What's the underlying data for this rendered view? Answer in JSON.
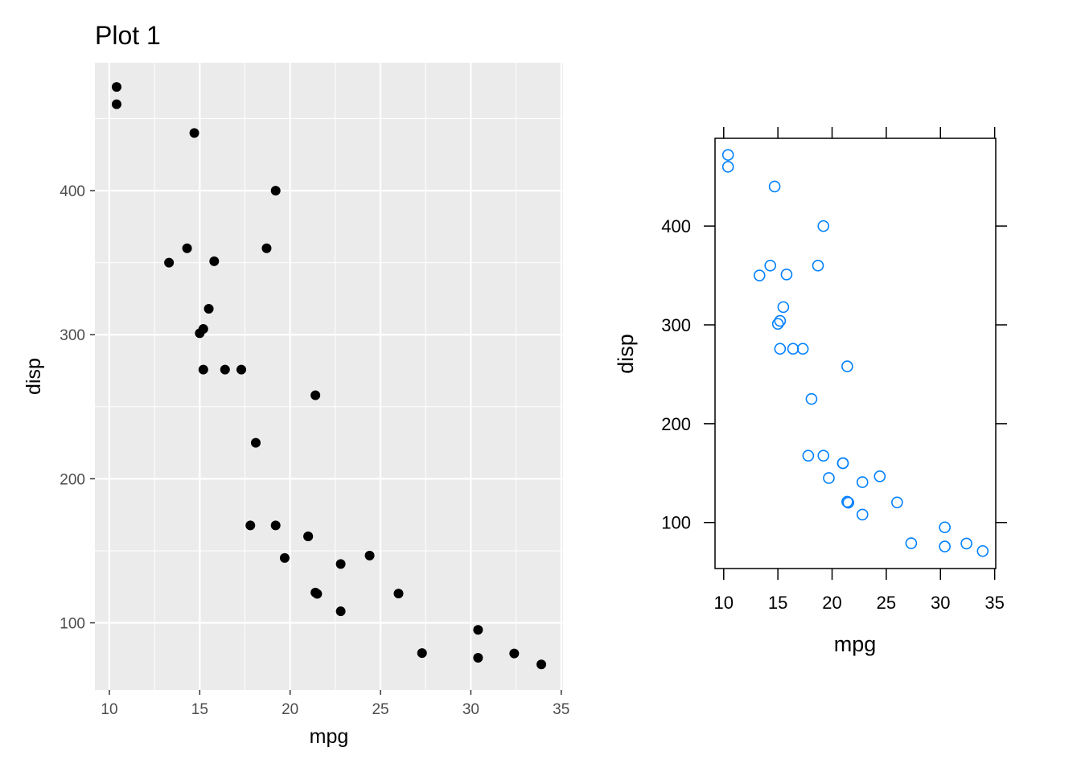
{
  "chart_data": [
    {
      "type": "scatter",
      "title": "Plot 1",
      "xlabel": "mpg",
      "ylabel": "disp",
      "xlim": [
        9.2,
        35.1
      ],
      "ylim": [
        53.4,
        488.8
      ],
      "xticks": [
        10,
        15,
        20,
        25,
        30,
        35
      ],
      "yticks": [
        100,
        200,
        300,
        400
      ],
      "x_tick_labels": [
        "10",
        "15",
        "20",
        "25",
        "30",
        "35"
      ],
      "y_tick_labels": [
        "100",
        "200",
        "300",
        "400"
      ],
      "grid": true,
      "style": {
        "panel_background": "#ebebeb",
        "grid_color": "#ffffff",
        "point_color": "#000000",
        "point_shape": "filled-circle"
      },
      "series": [
        {
          "x": [
            21.0,
            21.0,
            22.8,
            21.4,
            18.7,
            18.1,
            14.3,
            24.4,
            22.8,
            19.2,
            17.8,
            16.4,
            17.3,
            15.2,
            10.4,
            10.4,
            14.7,
            32.4,
            30.4,
            33.9,
            21.5,
            15.5,
            15.2,
            13.3,
            19.2,
            27.3,
            26.0,
            30.4,
            15.8,
            19.7,
            15.0,
            21.4
          ],
          "y": [
            160.0,
            160.0,
            108.0,
            258.0,
            360.0,
            225.0,
            360.0,
            146.7,
            140.8,
            167.6,
            167.6,
            275.8,
            275.8,
            275.8,
            472.0,
            460.0,
            440.0,
            78.7,
            75.7,
            71.1,
            120.1,
            318.0,
            304.0,
            350.0,
            400.0,
            79.0,
            120.3,
            95.1,
            351.0,
            145.0,
            301.0,
            121.0
          ]
        }
      ]
    },
    {
      "type": "scatter",
      "xlabel": "mpg",
      "ylabel": "disp",
      "xlim": [
        9.2,
        35.1
      ],
      "ylim": [
        53.4,
        488.8
      ],
      "xticks": [
        10,
        15,
        20,
        25,
        30,
        35
      ],
      "yticks": [
        100,
        200,
        300,
        400
      ],
      "x_tick_labels": [
        "10",
        "15",
        "20",
        "25",
        "30",
        "35"
      ],
      "y_tick_labels": [
        "100",
        "200",
        "300",
        "400"
      ],
      "grid": false,
      "style": {
        "panel_background": "#ffffff",
        "point_color": "#0080ff",
        "point_shape": "open-circle"
      },
      "series": [
        {
          "x": [
            21.0,
            21.0,
            22.8,
            21.4,
            18.7,
            18.1,
            14.3,
            24.4,
            22.8,
            19.2,
            17.8,
            16.4,
            17.3,
            15.2,
            10.4,
            10.4,
            14.7,
            32.4,
            30.4,
            33.9,
            21.5,
            15.5,
            15.2,
            13.3,
            19.2,
            27.3,
            26.0,
            30.4,
            15.8,
            19.7,
            15.0,
            21.4
          ],
          "y": [
            160.0,
            160.0,
            108.0,
            258.0,
            360.0,
            225.0,
            360.0,
            146.7,
            140.8,
            167.6,
            167.6,
            275.8,
            275.8,
            275.8,
            472.0,
            460.0,
            440.0,
            78.7,
            75.7,
            71.1,
            120.1,
            318.0,
            304.0,
            350.0,
            400.0,
            79.0,
            120.3,
            95.1,
            351.0,
            145.0,
            301.0,
            121.0
          ]
        }
      ]
    }
  ]
}
